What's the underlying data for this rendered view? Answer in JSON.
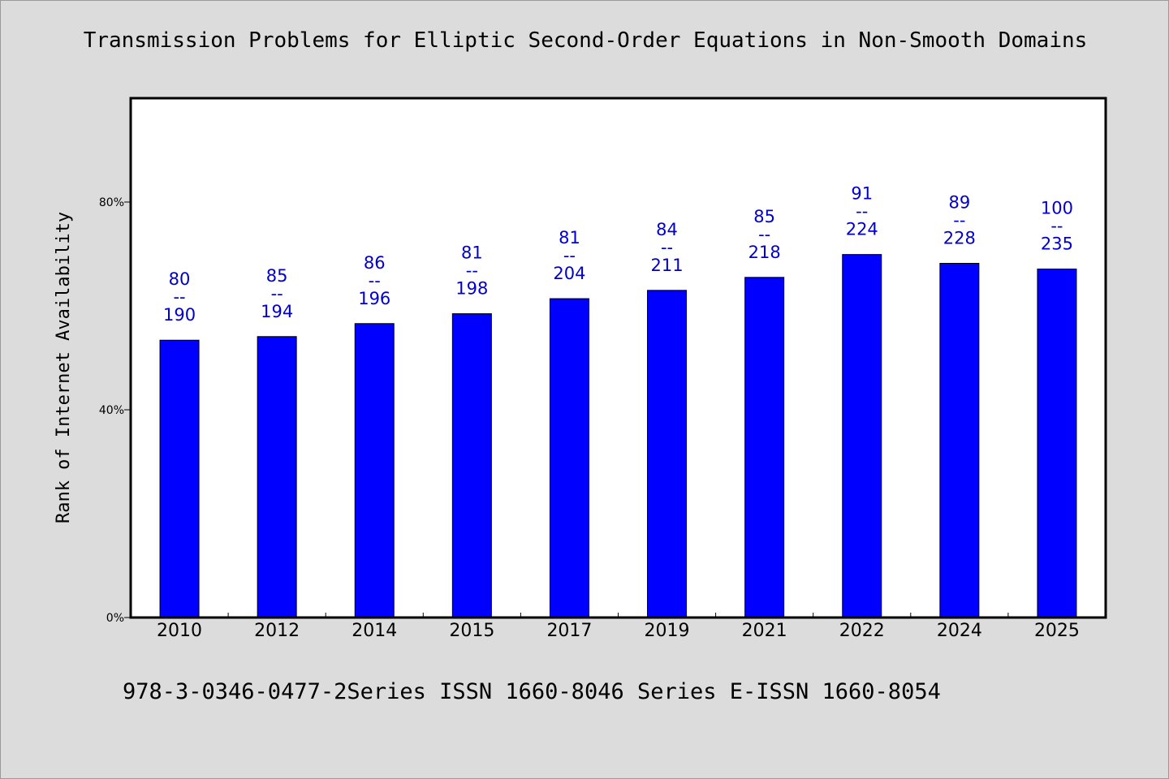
{
  "title": "Transmission Problems for Elliptic Second-Order Equations in Non-Smooth Domains",
  "footer": "978-3-0346-0477-2Series ISSN 1660-8046 Series E-ISSN 1660-8054",
  "colors": {
    "background": "#dcdcdc",
    "plot_background": "#ffffff",
    "bar": "#0000ff",
    "data_label": "#0000cc"
  },
  "chart_data": {
    "type": "bar",
    "title": "Transmission Problems for Elliptic Second-Order Equations in Non-Smooth Domains",
    "ylabel": "Rank of Internet Availability",
    "xlabel": "",
    "ylim": [
      0,
      1
    ],
    "yticks": [
      {
        "value": 0,
        "label": "0%"
      },
      {
        "value": 0.4,
        "label": "40%"
      },
      {
        "value": 0.8,
        "label": "80%"
      }
    ],
    "categories": [
      "2010",
      "2012",
      "2014",
      "2015",
      "2017",
      "2019",
      "2021",
      "2022",
      "2024",
      "2025"
    ],
    "values": [
      0.534,
      0.541,
      0.566,
      0.585,
      0.614,
      0.63,
      0.655,
      0.699,
      0.682,
      0.671
    ],
    "labels": [
      {
        "top": "80",
        "sep": "--",
        "bottom": "190"
      },
      {
        "top": "85",
        "sep": "--",
        "bottom": "194"
      },
      {
        "top": "86",
        "sep": "--",
        "bottom": "196"
      },
      {
        "top": "81",
        "sep": "--",
        "bottom": "198"
      },
      {
        "top": "81",
        "sep": "--",
        "bottom": "204"
      },
      {
        "top": "84",
        "sep": "--",
        "bottom": "211"
      },
      {
        "top": "85",
        "sep": "--",
        "bottom": "218"
      },
      {
        "top": "91",
        "sep": "--",
        "bottom": "224"
      },
      {
        "top": "89",
        "sep": "--",
        "bottom": "228"
      },
      {
        "top": "100",
        "sep": "--",
        "bottom": "235"
      }
    ],
    "grid": false,
    "legend": "none"
  }
}
